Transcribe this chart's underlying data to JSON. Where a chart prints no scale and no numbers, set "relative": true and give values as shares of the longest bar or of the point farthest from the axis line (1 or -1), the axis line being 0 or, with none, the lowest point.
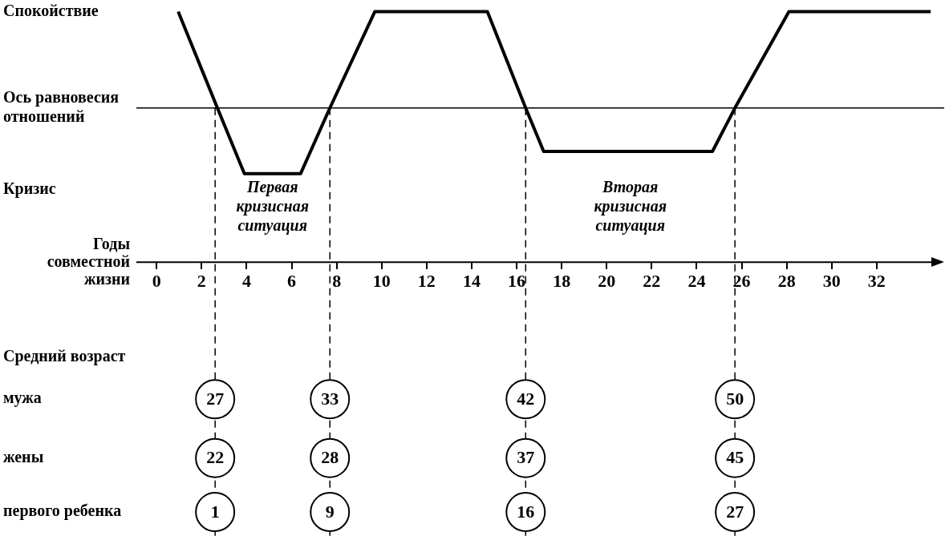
{
  "chart_data": {
    "type": "line",
    "xlabel": "Годы совместной жизни",
    "relative": true,
    "x": [
      0.96,
      2.7,
      3.9,
      6.4,
      7.7,
      9.7,
      14.7,
      16.4,
      17.2,
      24.7,
      25.7,
      28.1,
      34.4
    ],
    "series": [
      {
        "color": "#000000",
        "values": [
          1,
          0,
          -0.68,
          -0.68,
          0,
          1,
          1,
          0,
          -0.45,
          -0.45,
          0,
          1,
          1
        ]
      }
    ],
    "xlim": [
      -0.9,
      35
    ],
    "xticks": [
      0,
      2,
      4,
      6,
      8,
      10,
      12,
      14,
      16,
      18,
      20,
      22,
      24,
      26,
      28,
      30,
      32
    ],
    "ref_lines": [
      {
        "axis": "y",
        "value": 0,
        "label": "Ось равновесия отношений"
      },
      {
        "axis": "x",
        "value": 2.6,
        "line_style": "dashed"
      },
      {
        "axis": "x",
        "value": 7.7,
        "line_style": "dashed"
      },
      {
        "axis": "x",
        "value": 16.4,
        "line_style": "dashed"
      },
      {
        "axis": "x",
        "value": 25.7,
        "line_style": "dashed"
      }
    ],
    "annotations": [
      "Спокойствие",
      "Кризис",
      "Первая кризисная ситуация",
      "Вторая кризисная ситуация",
      "Средний возраст",
      "мужа",
      "жены",
      "первого ребенка",
      {
        "text": "27",
        "x": 2.6,
        "y": -3.02
      },
      {
        "text": "33",
        "x": 7.7,
        "y": -3.02
      },
      {
        "text": "42",
        "x": 16.4,
        "y": -3.02
      },
      {
        "text": "50",
        "x": 25.7,
        "y": -3.02
      },
      {
        "text": "22",
        "x": 2.6,
        "y": -3.63
      },
      {
        "text": "28",
        "x": 7.7,
        "y": -3.63
      },
      {
        "text": "37",
        "x": 16.4,
        "y": -3.63
      },
      {
        "text": "45",
        "x": 25.7,
        "y": -3.63
      },
      {
        "text": "1",
        "x": 2.6,
        "y": -4.19
      },
      {
        "text": "9",
        "x": 7.7,
        "y": -4.19
      },
      {
        "text": "16",
        "x": 16.4,
        "y": -4.19
      },
      {
        "text": "27",
        "x": 25.7,
        "y": -4.19
      }
    ],
    "grid": false,
    "legend": false,
    "marker": "none",
    "line_style": "solid"
  }
}
